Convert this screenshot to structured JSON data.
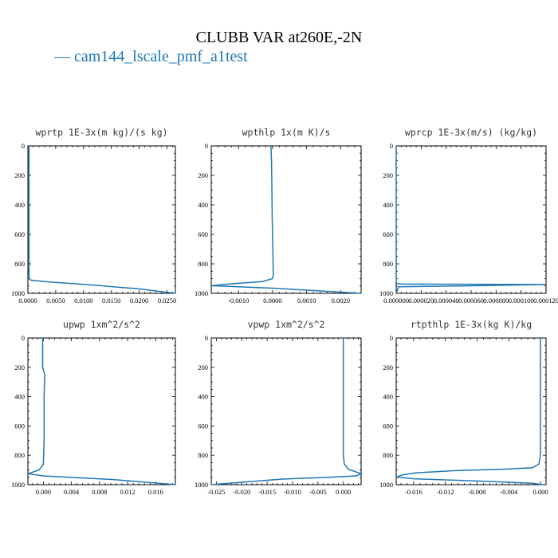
{
  "figure": {
    "title": "CLUBB VAR at260E,-2N",
    "legend": "— cam144_lscale_pmf_a1test",
    "series_color": "#1f77b4"
  },
  "chart_data": [
    {
      "type": "line",
      "title": "wprtp  1E-3x(m kg)/(s kg)",
      "xlim": [
        0,
        0.0265
      ],
      "xticks": [
        "0.0000",
        "0.0050",
        "0.0100",
        "0.0150",
        "0.0200",
        "0.0250"
      ],
      "xtick_values": [
        0,
        0.005,
        0.01,
        0.015,
        0.02,
        0.025
      ],
      "ylim": [
        1000,
        0
      ],
      "yticks": [
        "0",
        "200",
        "400",
        "600",
        "800",
        "1000"
      ],
      "series": [
        {
          "x": [
            0.0002,
            0.0002,
            0.0002,
            0.0002,
            0.0002,
            0.0002,
            0.0003,
            0.0005,
            0.003,
            0.012,
            0.02,
            0.0265
          ],
          "y": [
            0,
            200,
            400,
            600,
            800,
            880,
            905,
            910,
            920,
            945,
            970,
            1000
          ]
        }
      ]
    },
    {
      "type": "line",
      "title": "wpthlp  1x(m K)/s",
      "xlim": [
        -0.0018,
        0.0026
      ],
      "xticks": [
        "-0.0010",
        "0.0000",
        "0.0010",
        "0.0020"
      ],
      "xtick_values": [
        -0.001,
        0,
        0.001,
        0.002
      ],
      "ylim": [
        1000,
        0
      ],
      "yticks": [
        "0",
        "200",
        "400",
        "600",
        "800",
        "1000"
      ],
      "series": [
        {
          "x": [
            -5e-05,
            -3e-05,
            -2e-05,
            -1e-05,
            1e-05,
            2e-05,
            0.0,
            -0.0003,
            -0.0012,
            -0.0018,
            0.0,
            0.0026
          ],
          "y": [
            0,
            100,
            300,
            500,
            700,
            880,
            900,
            920,
            935,
            948,
            965,
            1000
          ]
        }
      ]
    },
    {
      "type": "line",
      "title": "wprcp  1E-3x(m/s) (kg/kg)",
      "xlim": [
        0,
        0.00012
      ],
      "xticks": [
        "0.000000",
        "0.000020",
        "0.000040",
        "0.000060",
        "0.000080",
        "0.000100",
        "0.000120"
      ],
      "xtick_values": [
        0,
        2e-05,
        4e-05,
        6e-05,
        8e-05,
        0.0001,
        0.00012
      ],
      "ylim": [
        1000,
        0
      ],
      "yticks": [
        "0",
        "200",
        "400",
        "600",
        "800",
        "1000"
      ],
      "series": [
        {
          "x": [
            0,
            0,
            0,
            3e-06,
            0.00012,
            5e-05,
            2e-06,
            1e-06,
            0
          ],
          "y": [
            0,
            500,
            930,
            937,
            940,
            950,
            955,
            975,
            1000
          ]
        }
      ]
    },
    {
      "type": "line",
      "title": "upwp  1xm^2/s^2",
      "xlim": [
        -0.0022,
        0.0188
      ],
      "xticks": [
        "0.000",
        "0.004",
        "0.008",
        "0.012",
        "0.016"
      ],
      "xtick_values": [
        0,
        0.004,
        0.008,
        0.012,
        0.016
      ],
      "ylim": [
        1000,
        0
      ],
      "yticks": [
        "0",
        "200",
        "400",
        "600",
        "800",
        "1000"
      ],
      "series": [
        {
          "x": [
            -0.0001,
            -0.0001,
            0.0002,
            0.0001,
            0.0001,
            0.0,
            -0.0006,
            -0.0022,
            0.0,
            0.01,
            0.0188
          ],
          "y": [
            0,
            200,
            250,
            400,
            700,
            860,
            900,
            925,
            940,
            965,
            1000
          ]
        }
      ]
    },
    {
      "type": "line",
      "title": "vpwp  1xm^2/s^2",
      "xlim": [
        -0.026,
        0.0035
      ],
      "xticks": [
        "-0.025",
        "-0.020",
        "-0.015",
        "-0.010",
        "-0.005",
        "0.000"
      ],
      "xtick_values": [
        -0.025,
        -0.02,
        -0.015,
        -0.01,
        -0.005,
        0
      ],
      "ylim": [
        1000,
        0
      ],
      "yticks": [
        "0",
        "200",
        "400",
        "600",
        "800",
        "1000"
      ],
      "series": [
        {
          "x": [
            0.0,
            0.0,
            0.0,
            0.0,
            0.0002,
            0.001,
            0.0035,
            0.0025,
            -0.003,
            -0.012,
            -0.026
          ],
          "y": [
            0,
            300,
            600,
            800,
            860,
            895,
            925,
            940,
            950,
            962,
            1000
          ]
        }
      ]
    },
    {
      "type": "line",
      "title": "rtpthlp  1E-3x(kg K)/kg",
      "xlim": [
        -0.0182,
        0.0007
      ],
      "xticks": [
        "-0.016",
        "-0.012",
        "-0.008",
        "-0.004",
        "0.000"
      ],
      "xtick_values": [
        -0.016,
        -0.012,
        -0.008,
        -0.004,
        0
      ],
      "ylim": [
        1000,
        0
      ],
      "yticks": [
        "0",
        "200",
        "400",
        "600",
        "800",
        "1000"
      ],
      "series": [
        {
          "x": [
            0.0,
            0.0,
            0.0,
            -0.0002,
            -0.001,
            -0.005,
            -0.011,
            -0.0158,
            -0.0175,
            -0.0182,
            -0.016,
            -0.008,
            -0.001,
            0.0003
          ],
          "y": [
            0,
            400,
            800,
            860,
            885,
            895,
            905,
            920,
            935,
            948,
            960,
            975,
            990,
            1000
          ]
        }
      ]
    }
  ]
}
